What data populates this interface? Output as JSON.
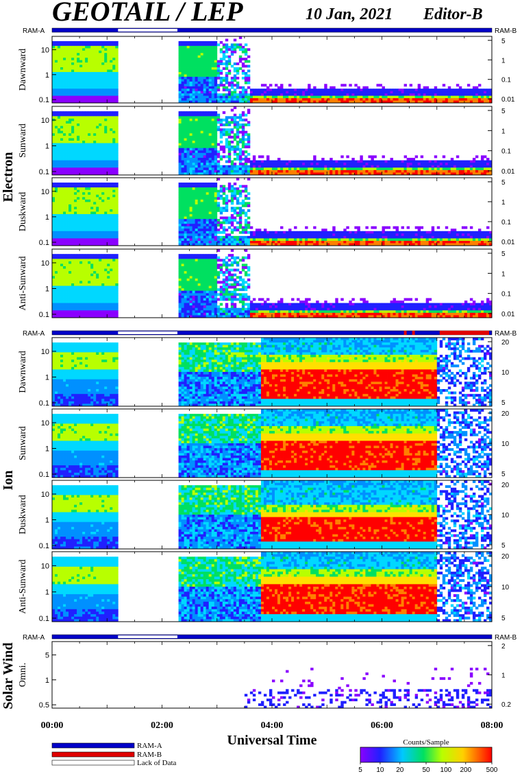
{
  "header": {
    "title": "GEOTAIL / LEP",
    "date": "10 Jan, 2021",
    "editor": "Editor-B"
  },
  "colors": {
    "ram_a": "#0000c8",
    "ram_b": "#e00000",
    "lack": "#ffffff"
  },
  "sections": [
    {
      "name": "Electron",
      "ram_left": "RAM-A",
      "ram_right": "RAM-B",
      "panels": [
        {
          "label": "Dawnward",
          "left_ticks": [
            "10",
            "1",
            "0.1"
          ],
          "right_ticks": [
            "5",
            "1",
            "0.1",
            "0.01"
          ]
        },
        {
          "label": "Sunward",
          "left_ticks": [
            "10",
            "1",
            "0.1"
          ],
          "right_ticks": [
            "5",
            "1",
            "0.1",
            "0.01"
          ]
        },
        {
          "label": "Duskward",
          "left_ticks": [
            "10",
            "1",
            "0.1"
          ],
          "right_ticks": [
            "5",
            "1",
            "0.1",
            "0.01"
          ]
        },
        {
          "label": "Anti-Sunward",
          "left_ticks": [
            "10",
            "1",
            "0.1"
          ],
          "right_ticks": [
            "5",
            "1",
            "0.1",
            "0.01"
          ]
        }
      ]
    },
    {
      "name": "Ion",
      "ram_left": "RAM-A",
      "ram_right": "RAM-B",
      "panels": [
        {
          "label": "Dawnward",
          "left_ticks": [
            "10",
            "1",
            "0.1"
          ],
          "right_ticks": [
            "20",
            "10",
            "5"
          ]
        },
        {
          "label": "Sunward",
          "left_ticks": [
            "10",
            "1",
            "0.1"
          ],
          "right_ticks": [
            "20",
            "10",
            "5"
          ]
        },
        {
          "label": "Duskward",
          "left_ticks": [
            "10",
            "1",
            "0.1"
          ],
          "right_ticks": [
            "20",
            "10",
            "5"
          ]
        },
        {
          "label": "Anti-Sunward",
          "left_ticks": [
            "10",
            "1",
            "0.1"
          ],
          "right_ticks": [
            "20",
            "10",
            "5"
          ]
        }
      ]
    },
    {
      "name": "Solar Wind",
      "ram_left": "RAM-A",
      "ram_right": "RAM-B",
      "panels": [
        {
          "label": "Omni.",
          "left_ticks": [
            "5",
            "1",
            "0.5"
          ],
          "right_ticks": [
            "2",
            "1",
            "0.2"
          ]
        }
      ]
    }
  ],
  "legend": {
    "items": [
      "RAM-A",
      "RAM-B",
      "Lack of Data"
    ],
    "colorbar_title": "Counts/Sample",
    "colorbar_ticks": [
      "5",
      "10",
      "20",
      "50",
      "100",
      "200",
      "500"
    ]
  },
  "chart_data": {
    "type": "heatmap",
    "title": "GEOTAIL / LEP",
    "xlabel": "Universal Time",
    "x_ticks": [
      "00:00",
      "02:00",
      "04:00",
      "06:00",
      "08:00"
    ],
    "x_range_hours": [
      0,
      8
    ],
    "data_gaps_hours": [
      [
        1.2,
        2.28
      ]
    ],
    "electron_hot_plasma_until_hours": 3.6,
    "ion_dense_plasma_start_hours": 3.8,
    "ion_dense_plasma_end_hours": 7.0,
    "colorbar_range": [
      5,
      500
    ]
  }
}
